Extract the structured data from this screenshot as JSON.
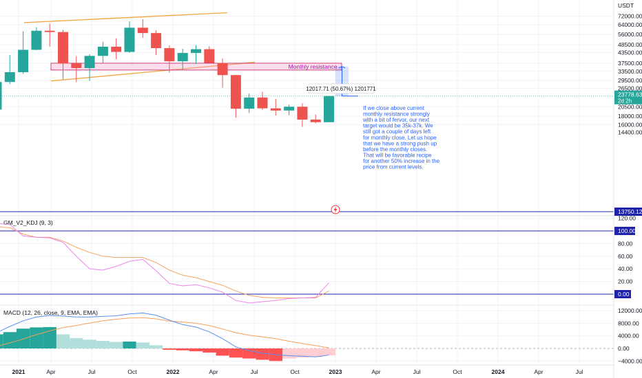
{
  "quote_currency": "USDT",
  "price_axis": {
    "ticks": [
      "72000.00",
      "64000.00",
      "56000.00",
      "48500.00",
      "43500.00",
      "37500.00",
      "33500.00",
      "29500.00",
      "26500.00",
      "23778.63",
      "20500.00",
      "18000.00",
      "16000.00",
      "14400.00",
      "13750.12"
    ],
    "current_price": "23778.63",
    "countdown": "2d 2h",
    "low_marker": "13750.12"
  },
  "time_axis": [
    "2021",
    "Apr",
    "Jul",
    "Oct",
    "2022",
    "Apr",
    "Jul",
    "Oct",
    "2023",
    "Apr",
    "Jul",
    "Oct",
    "2024",
    "Apr",
    "Jul"
  ],
  "resistance_label": "Monthly resistance",
  "measure_label": "12017.71 (50.67%) 1201771",
  "annotation_lines": [
    "If we close above current",
    "monthly resistance strongly",
    "with a bit of fervor, our next",
    "target would be 35k-37k. We",
    "still got a couple of days left",
    "for monthly close. Let us hope",
    "that we have a strong push up",
    "before the monthly closes.",
    "That will be favorable recipe",
    "for another 50% increase in the",
    "price from current levels."
  ],
  "kdj": {
    "title": "GM_V2_KDJ (9, 3)",
    "ticks": [
      "120.00",
      "100.00",
      "80.00",
      "60.00",
      "40.00",
      "20.00",
      "0.00"
    ],
    "marker_100": "100.00",
    "marker_0": "0.00"
  },
  "macd": {
    "title": "MACD (12, 26, close, 9, EMA, EMA)",
    "ticks": [
      "12000.00",
      "8000.00",
      "4000.00",
      "0.00",
      "−4000.00"
    ]
  },
  "colors": {
    "up": "#26a69a",
    "down": "#ef5350",
    "fast": "#ee82ee",
    "slow": "#f4a460",
    "macd": "#5b8def",
    "signal": "#f5a05a",
    "blue": "#2962ff",
    "orange": "#f5a442",
    "navy": "#1e22aa"
  },
  "chart_data": {
    "type": "candlestick",
    "candles": [
      {
        "t": "2020-12",
        "o": 19700,
        "h": 29300,
        "l": 17600,
        "c": 28900
      },
      {
        "t": "2021-01",
        "o": 28900,
        "h": 41950,
        "l": 28100,
        "c": 33100
      },
      {
        "t": "2021-02",
        "o": 33100,
        "h": 58350,
        "l": 32300,
        "c": 45150
      },
      {
        "t": "2021-03",
        "o": 45150,
        "h": 61800,
        "l": 44950,
        "c": 58800
      },
      {
        "t": "2021-04",
        "o": 58800,
        "h": 64850,
        "l": 47050,
        "c": 57750
      },
      {
        "t": "2021-05",
        "o": 57750,
        "h": 59500,
        "l": 30000,
        "c": 37300
      },
      {
        "t": "2021-06",
        "o": 37300,
        "h": 41300,
        "l": 28800,
        "c": 35050
      },
      {
        "t": "2021-07",
        "o": 35050,
        "h": 42450,
        "l": 29300,
        "c": 41500
      },
      {
        "t": "2021-08",
        "o": 41500,
        "h": 50500,
        "l": 37350,
        "c": 47150
      },
      {
        "t": "2021-09",
        "o": 47150,
        "h": 52950,
        "l": 39600,
        "c": 43850
      },
      {
        "t": "2021-10",
        "o": 43850,
        "h": 67000,
        "l": 43300,
        "c": 61350
      },
      {
        "t": "2021-11",
        "o": 61350,
        "h": 69000,
        "l": 53250,
        "c": 56950
      },
      {
        "t": "2021-12",
        "o": 56950,
        "h": 59100,
        "l": 42000,
        "c": 46200
      },
      {
        "t": "2022-01",
        "o": 46200,
        "h": 47950,
        "l": 32900,
        "c": 38500
      },
      {
        "t": "2022-02",
        "o": 38500,
        "h": 45800,
        "l": 34300,
        "c": 43200
      },
      {
        "t": "2022-03",
        "o": 43200,
        "h": 48200,
        "l": 37150,
        "c": 45550
      },
      {
        "t": "2022-04",
        "o": 45550,
        "h": 47450,
        "l": 37550,
        "c": 37650
      },
      {
        "t": "2022-05",
        "o": 37650,
        "h": 40050,
        "l": 26700,
        "c": 31800
      },
      {
        "t": "2022-06",
        "o": 31800,
        "h": 31950,
        "l": 17600,
        "c": 19950
      },
      {
        "t": "2022-07",
        "o": 19950,
        "h": 24650,
        "l": 18800,
        "c": 23300
      },
      {
        "t": "2022-08",
        "o": 23300,
        "h": 25200,
        "l": 19550,
        "c": 20050
      },
      {
        "t": "2022-09",
        "o": 20050,
        "h": 22800,
        "l": 18150,
        "c": 19450
      },
      {
        "t": "2022-10",
        "o": 19450,
        "h": 21100,
        "l": 18200,
        "c": 20500
      },
      {
        "t": "2022-11",
        "o": 20500,
        "h": 21500,
        "l": 15500,
        "c": 17150
      },
      {
        "t": "2022-12",
        "o": 17150,
        "h": 18400,
        "l": 16300,
        "c": 16550
      },
      {
        "t": "2023-01",
        "o": 16550,
        "h": 23950,
        "l": 16500,
        "c": 23778.63
      }
    ],
    "kdj_k": [
      112,
      110,
      92,
      90,
      89,
      82,
      60,
      40,
      38,
      44,
      52,
      55,
      37,
      17,
      13,
      15,
      10,
      3,
      -10,
      -14,
      -12,
      -10,
      -7,
      -6,
      -5,
      18
    ],
    "kdj_d": [
      107,
      105,
      95,
      90,
      90,
      84,
      74,
      66,
      60,
      58,
      58,
      58,
      50,
      38,
      30,
      26,
      20,
      14,
      5,
      -2,
      -5,
      -6,
      -6,
      -6,
      -6,
      5
    ],
    "macd_hist": [
      4500,
      5200,
      6300,
      6700,
      6800,
      4500,
      3300,
      2800,
      2400,
      2100,
      2200,
      1900,
      1000,
      -400,
      -600,
      -900,
      -1300,
      -2300,
      -2900,
      -3200,
      -3600,
      -4000,
      -3200,
      -2900,
      -2700,
      -2200
    ],
    "macd_line": [
      5000,
      7000,
      8800,
      10000,
      10500,
      10300,
      10000,
      10000,
      10200,
      10400,
      11000,
      11300,
      10600,
      9000,
      7600,
      6800,
      5300,
      3100,
      500,
      -700,
      -1500,
      -2000,
      -2300,
      -2500,
      -2700,
      -2100
    ],
    "signal_line": [
      600,
      1800,
      3000,
      4400,
      5600,
      6600,
      7300,
      8100,
      8800,
      9300,
      9700,
      9800,
      9400,
      8700,
      8400,
      8000,
      7300,
      6200,
      5000,
      4200,
      3700,
      3100,
      2300,
      1600,
      900,
      200
    ]
  }
}
